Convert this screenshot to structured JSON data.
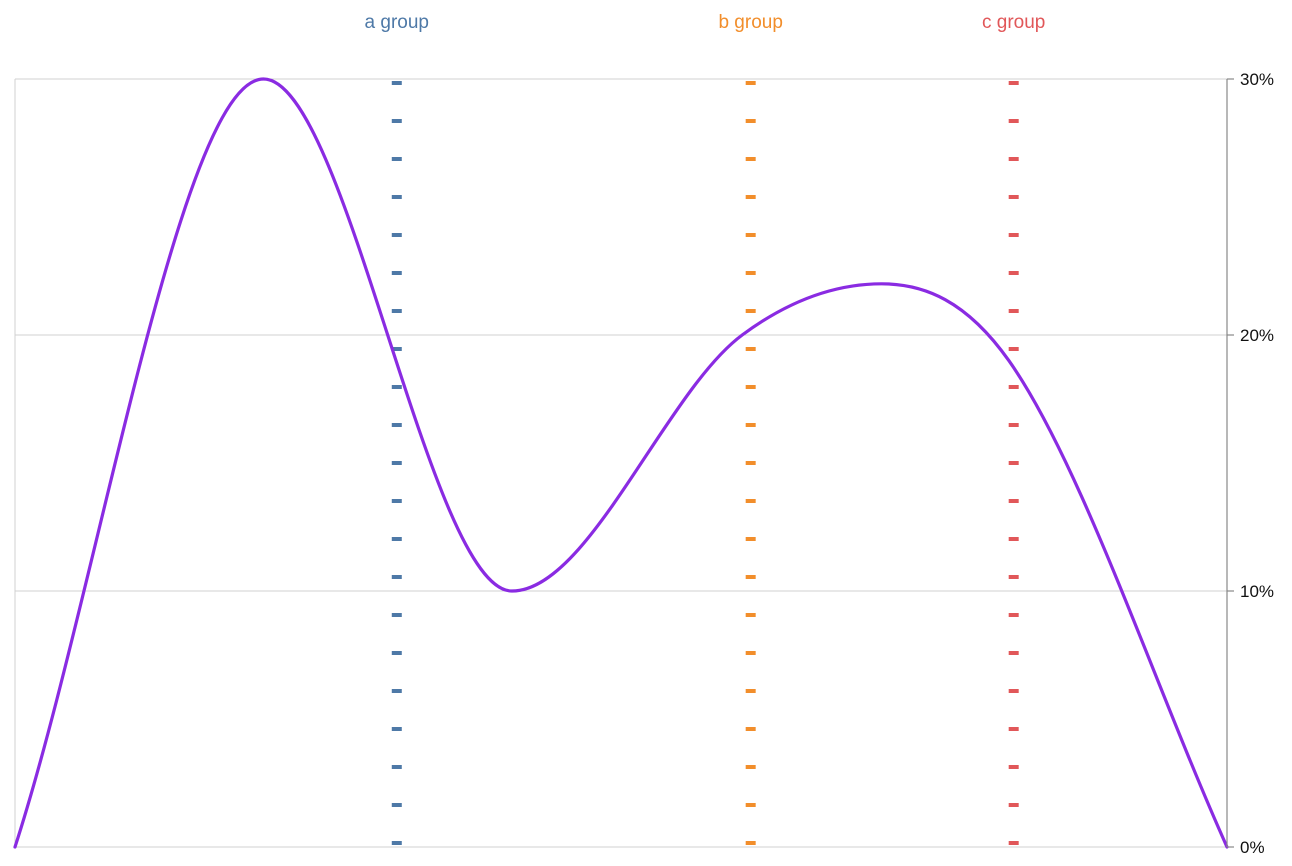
{
  "chart_data": {
    "type": "line",
    "title": "",
    "xlabel": "",
    "ylabel": "",
    "yaxis": {
      "position": "right",
      "ylim": [
        0,
        30
      ],
      "ticks": [
        0,
        10,
        20,
        30
      ],
      "tick_labels": [
        "0%",
        "10%",
        "20%",
        "30%"
      ]
    },
    "xlim": [
      0,
      1
    ],
    "grid": true,
    "series": [
      {
        "color": "#8a2be2",
        "points": [
          {
            "x": 0.0,
            "y": 0.0
          },
          {
            "x": 0.205,
            "y": 30.0
          },
          {
            "x": 0.41,
            "y": 10.0
          },
          {
            "x": 0.6,
            "y": 20.0
          },
          {
            "x": 0.715,
            "y": 22.0
          },
          {
            "x": 0.82,
            "y": 19.0
          },
          {
            "x": 1.0,
            "y": 0.0
          }
        ]
      }
    ],
    "annotations": [
      {
        "label": "a group",
        "x": 0.315,
        "color": "#4e79a7"
      },
      {
        "label": "b group",
        "x": 0.607,
        "color": "#f28e2b"
      },
      {
        "label": "c group",
        "x": 0.824,
        "color": "#e15759"
      }
    ]
  }
}
